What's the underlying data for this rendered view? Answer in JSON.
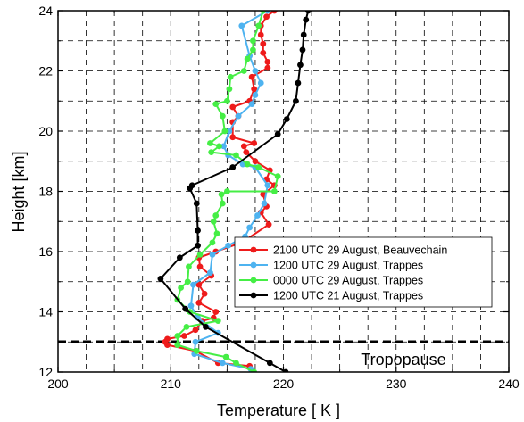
{
  "chart_data": {
    "type": "line",
    "xlabel": "Temperature [ K ]",
    "ylabel": "Height [km]",
    "xlim": [
      200,
      240
    ],
    "ylim": [
      12,
      24
    ],
    "xticks": [
      200,
      210,
      220,
      230,
      240
    ],
    "yticks": [
      12,
      14,
      16,
      18,
      20,
      22,
      24
    ],
    "grid": true,
    "grid_style": "dashed",
    "legend_position": "right-middle",
    "annotation": {
      "text": "Tropopause",
      "y": 13.0
    },
    "series": [
      {
        "name": "2100 UTC 29 August, Beauvechain",
        "color": "#ee1b1b",
        "points": [
          [
            217.0,
            12.2
          ],
          [
            214.2,
            12.3
          ],
          [
            212.2,
            12.7
          ],
          [
            209.7,
            12.9
          ],
          [
            209.5,
            13.0
          ],
          [
            209.7,
            13.1
          ],
          [
            211.2,
            13.2
          ],
          [
            212.2,
            13.4
          ],
          [
            212.8,
            13.7
          ],
          [
            213.8,
            13.8
          ],
          [
            214.0,
            14.0
          ],
          [
            212.5,
            14.3
          ],
          [
            213.0,
            14.6
          ],
          [
            212.5,
            14.9
          ],
          [
            213.6,
            15.2
          ],
          [
            212.6,
            15.5
          ],
          [
            212.5,
            15.8
          ],
          [
            214.0,
            16.0
          ],
          [
            216.3,
            16.3
          ],
          [
            218.7,
            16.9
          ],
          [
            218.0,
            17.3
          ],
          [
            218.5,
            17.5
          ],
          [
            218.2,
            17.9
          ],
          [
            219.2,
            18.2
          ],
          [
            218.5,
            18.4
          ],
          [
            218.8,
            18.7
          ],
          [
            217.5,
            19.0
          ],
          [
            216.7,
            19.3
          ],
          [
            216.5,
            19.5
          ],
          [
            217.4,
            19.6
          ],
          [
            215.5,
            19.8
          ],
          [
            215.5,
            20.3
          ],
          [
            216.0,
            20.5
          ],
          [
            215.5,
            20.8
          ],
          [
            217.0,
            21.0
          ],
          [
            217.4,
            21.4
          ],
          [
            217.2,
            21.8
          ],
          [
            218.6,
            22.1
          ],
          [
            218.6,
            22.3
          ],
          [
            218.2,
            22.6
          ],
          [
            218.2,
            22.9
          ],
          [
            218.0,
            23.2
          ],
          [
            218.0,
            23.5
          ],
          [
            218.5,
            23.8
          ],
          [
            219.2,
            24.0
          ]
        ]
      },
      {
        "name": "1200 UTC 29 August, Trappes",
        "color": "#4eb3f0",
        "points": [
          [
            217.1,
            12.1
          ],
          [
            214.6,
            12.3
          ],
          [
            212.1,
            12.6
          ],
          [
            212.2,
            13.0
          ],
          [
            214.2,
            13.3
          ],
          [
            212.4,
            13.8
          ],
          [
            211.8,
            14.2
          ],
          [
            212.0,
            14.9
          ],
          [
            213.5,
            15.3
          ],
          [
            213.7,
            15.9
          ],
          [
            215.1,
            16.2
          ],
          [
            216.6,
            16.5
          ],
          [
            217.0,
            16.8
          ],
          [
            217.7,
            17.2
          ],
          [
            218.3,
            17.6
          ],
          [
            218.6,
            18.2
          ],
          [
            217.5,
            18.8
          ],
          [
            216.4,
            18.9
          ],
          [
            215.1,
            19.2
          ],
          [
            214.7,
            19.5
          ],
          [
            215.2,
            20.0
          ],
          [
            216.0,
            20.5
          ],
          [
            217.2,
            20.9
          ],
          [
            217.5,
            21.2
          ],
          [
            218.0,
            21.6
          ],
          [
            217.5,
            22.0
          ],
          [
            217.0,
            22.5
          ],
          [
            216.3,
            23.5
          ],
          [
            218.6,
            24.0
          ]
        ]
      },
      {
        "name": "0000 UTC 29 August, Trappes",
        "color": "#45ee45",
        "points": [
          [
            217.4,
            12.0
          ],
          [
            215.8,
            12.3
          ],
          [
            214.9,
            12.5
          ],
          [
            212.3,
            12.7
          ],
          [
            210.6,
            12.9
          ],
          [
            210.6,
            13.2
          ],
          [
            211.4,
            13.5
          ],
          [
            214.2,
            13.7
          ],
          [
            211.7,
            14.0
          ],
          [
            210.6,
            14.4
          ],
          [
            210.9,
            14.8
          ],
          [
            211.5,
            15.0
          ],
          [
            211.6,
            15.5
          ],
          [
            212.6,
            15.9
          ],
          [
            213.7,
            16.3
          ],
          [
            214.1,
            16.6
          ],
          [
            213.8,
            17.0
          ],
          [
            214.0,
            17.2
          ],
          [
            214.6,
            17.6
          ],
          [
            214.5,
            17.9
          ],
          [
            215.0,
            18.0
          ],
          [
            219.2,
            18.0
          ],
          [
            219.5,
            18.5
          ],
          [
            217.8,
            18.8
          ],
          [
            216.8,
            18.9
          ],
          [
            215.8,
            19.2
          ],
          [
            213.6,
            19.3
          ],
          [
            214.3,
            19.5
          ],
          [
            213.5,
            19.6
          ],
          [
            214.8,
            20.0
          ],
          [
            214.6,
            20.5
          ],
          [
            214.0,
            20.9
          ],
          [
            215.0,
            21.0
          ],
          [
            215.2,
            21.4
          ],
          [
            215.3,
            21.8
          ],
          [
            216.5,
            22.0
          ],
          [
            216.8,
            22.4
          ],
          [
            217.3,
            22.7
          ],
          [
            217.3,
            23.0
          ],
          [
            217.8,
            23.5
          ],
          [
            218.2,
            24.0
          ]
        ]
      },
      {
        "name": "1200 UTC 21 August, Trappes",
        "color": "#000000",
        "points": [
          [
            220.2,
            12.0
          ],
          [
            218.8,
            12.3
          ],
          [
            213.1,
            13.5
          ],
          [
            211.3,
            14.1
          ],
          [
            209.1,
            15.1
          ],
          [
            210.8,
            15.8
          ],
          [
            212.4,
            16.2
          ],
          [
            212.4,
            16.7
          ],
          [
            212.3,
            17.6
          ],
          [
            211.7,
            18.1
          ],
          [
            211.9,
            18.2
          ],
          [
            215.5,
            18.8
          ],
          [
            219.5,
            19.9
          ],
          [
            220.3,
            20.4
          ],
          [
            221.1,
            21.0
          ],
          [
            221.3,
            21.6
          ],
          [
            221.5,
            22.2
          ],
          [
            221.7,
            22.7
          ],
          [
            221.8,
            23.2
          ],
          [
            222.0,
            23.7
          ],
          [
            222.2,
            24.0
          ]
        ]
      }
    ]
  }
}
